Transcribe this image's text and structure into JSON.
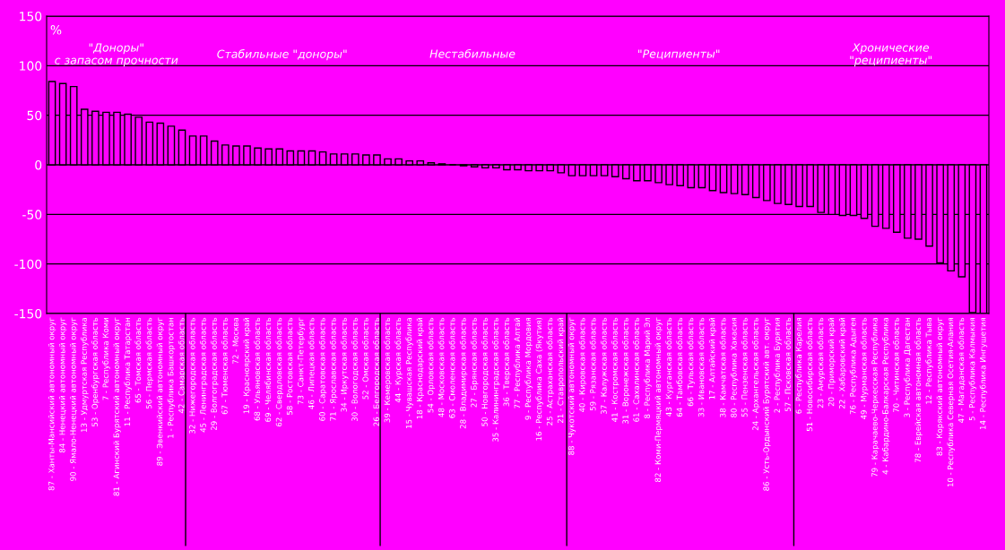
{
  "chart_data": {
    "type": "bar",
    "ylabel": "%",
    "categories": [
      "87 - Ханты-Мансийский автономный округ",
      "84 - Ненецкий автономный округ",
      "90 - Ямало-Ненецкий автономный округ",
      "13 - Удмуртская Республика",
      "53 - Оренбургская область",
      "7 - Республика Коми",
      "81 - Агинский Бурятский автономный округ",
      "11 - Республика Татарстан",
      "65 - Томская область",
      "56 - Пермская область",
      "89 - Эвенкийский автономный округ",
      "1 - Республика Башкортостан",
      "42 - Самарская область",
      "32 - Нижегородская область",
      "45 - Ленинградская область",
      "29 - Волгоградская область",
      "67 - Тюменская область",
      "72 - Москва",
      "19 - Красноярский край",
      "68 - Ульяновская область",
      "69 - Челябинская область",
      "62 - Свердловская область",
      "58 - Ростовская область",
      "73 - Санкт-Петербург",
      "46 - Липецкая область",
      "60 - Саратовская область",
      "71 - Ярославская область",
      "34 - Иркутская область",
      "30 - Вологодская область",
      "52 - Омская область",
      "26 - Белгородская область",
      "39 - Кемеровская область",
      "44 - Курская область",
      "15 - Чувашская Республика",
      "18 - Краснодарский край",
      "54 - Орловская область",
      "48 - Московская область",
      "63 - Смоленская область",
      "28 - Владимирская область",
      "27 - Брянская область",
      "50 - Новгородская область",
      "35 - Калининградская область",
      "36 - Тверская область",
      "77 - Республика Алтай",
      "9 - Республика Мордовия",
      "16 - Республика Саха (Якутия)",
      "25 - Астраханская область",
      "21 - Ставропольский край",
      "88 - Чукотский автономный округ",
      "40 - Кировская область",
      "59 - Рязанская область",
      "37 - Калужская область",
      "41 - Костромская область",
      "31 - Воронежская область",
      "61 - Сахалинская область",
      "8 - Республика Марий Эл",
      "82 - Коми-Пермяцкий автономный округ",
      "43 - Курганская область",
      "64 - Тамбовская область",
      "66 - Тульская область",
      "33 - Ивановская область",
      "17 - Алтайский край",
      "38 - Камчатская область",
      "80 - Республика Хакасия",
      "55 - Пензенская область",
      "24 - Архангельская область",
      "86 - Усть-Ордынский Бурятский авт. округ",
      "2 - Республика Бурятия",
      "57 - Псковская область",
      "6 - Республика Карелия",
      "51 - Новосибирская область",
      "23 - Амурская область",
      "20 - Приморский край",
      "22 - Хабаровский край",
      "76 - Республика Адыгея",
      "49 - Мурманская область",
      "79 - Карачаево-Черкесская Республика",
      "4 - Кабардино-Балкарская Республика",
      "70 - Читинская область",
      "3 - Республика Дагестан",
      "78 - Еврейская автономная область",
      "12 - Республика Тыва",
      "83 - Корякский автономный округ",
      "10 - Республика Северная Осетия-Алания",
      "47 - Магаданская область",
      "5 - Республика Калмыкия",
      "14 - Республика Ингушетия"
    ],
    "values": [
      84,
      82,
      79,
      56,
      54,
      53,
      53,
      51,
      48,
      43,
      42,
      39,
      35,
      29,
      29,
      24,
      20,
      19,
      19,
      17,
      16,
      16,
      14,
      14,
      14,
      13,
      11,
      11,
      11,
      10,
      10,
      6,
      6,
      4,
      4,
      2,
      1,
      0,
      -1,
      -2,
      -3,
      -3,
      -5,
      -5,
      -6,
      -6,
      -6,
      -8,
      -11,
      -11,
      -11,
      -11,
      -12,
      -14,
      -16,
      -16,
      -18,
      -20,
      -21,
      -23,
      -23,
      -26,
      -28,
      -29,
      -30,
      -33,
      -36,
      -39,
      -40,
      -42,
      -42,
      -48,
      -50,
      -51,
      -51,
      -54,
      -62,
      -64,
      -68,
      -74,
      -75,
      -82,
      -99,
      -107,
      -113,
      -149,
      -150
    ],
    "color": "#000000",
    "ylim": [
      -150,
      150
    ],
    "yticks": [
      -150,
      -100,
      -50,
      0,
      50,
      100,
      150
    ],
    "grid": "y",
    "annotations": [
      "\"Доноры\"\nс запасом прочности",
      "Стабильные \"доноры\"",
      "Нестабильные",
      "\"Реципиенты\"",
      "Хронические\n\"реципиенты\""
    ]
  }
}
